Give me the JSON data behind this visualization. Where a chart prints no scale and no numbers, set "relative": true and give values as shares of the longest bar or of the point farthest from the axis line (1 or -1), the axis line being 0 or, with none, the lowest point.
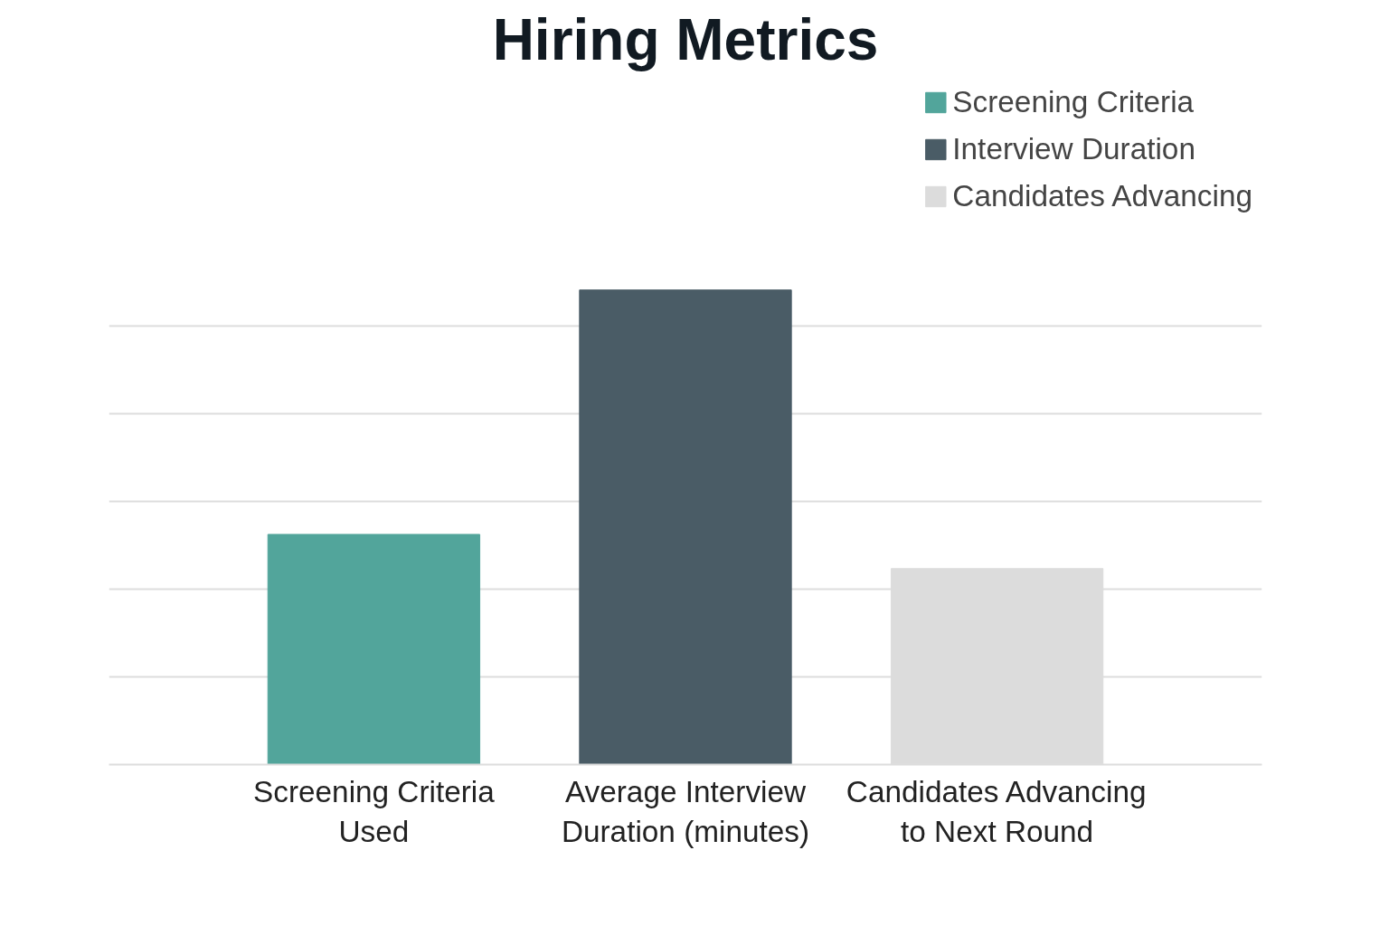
{
  "chart_data": {
    "type": "bar",
    "title": "Hiring Metrics",
    "relative": true,
    "grid": "y",
    "legend": "top right",
    "categories": [
      "Screening Criteria Used",
      "Average Interview Duration (minutes)",
      "Candidates Advancing to Next Round"
    ],
    "series": [
      {
        "name": "Screening Criteria",
        "color": "#52a59b",
        "values": [
          0.485,
          null,
          null
        ]
      },
      {
        "name": "Interview Duration",
        "color": "#4a5c66",
        "values": [
          null,
          1,
          null
        ]
      },
      {
        "name": "Candidates Advancing",
        "color": "#dcdcdc",
        "values": [
          null,
          null,
          0.413
        ]
      }
    ]
  }
}
